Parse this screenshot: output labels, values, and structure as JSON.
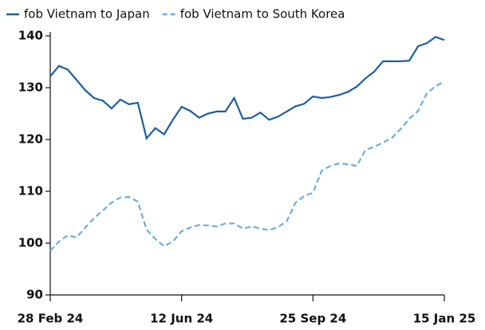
{
  "chart_data": {
    "type": "line",
    "categories": [
      "28 Feb 24",
      null,
      null,
      null,
      null,
      null,
      null,
      null,
      null,
      null,
      null,
      null,
      null,
      null,
      null,
      "12 Jun 24",
      null,
      null,
      null,
      null,
      null,
      null,
      null,
      null,
      null,
      null,
      null,
      null,
      null,
      null,
      "25 Sep 24",
      null,
      null,
      null,
      null,
      null,
      null,
      null,
      null,
      null,
      null,
      null,
      null,
      null,
      null,
      "15 Jan 25"
    ],
    "series": [
      {
        "name": "fob Vietnam to Japan",
        "color": "#1a5fa0",
        "dash": false,
        "values": [
          132.2,
          134.2,
          133.5,
          131.5,
          129.5,
          128,
          127.5,
          126,
          127.7,
          126.8,
          127.1,
          120.2,
          122.2,
          121,
          123.8,
          126.3,
          125.5,
          124.2,
          125,
          125.4,
          125.4,
          128,
          124,
          124.2,
          125.2,
          123.8,
          124.4,
          125.4,
          126.4,
          126.9,
          128.3,
          128,
          128.2,
          128.6,
          129.2,
          130.2,
          131.8,
          133.1,
          135.1,
          135.1,
          135.1,
          135.2,
          138,
          138.6,
          139.8,
          139.2
        ]
      },
      {
        "name": "fob Vietnam to South Korea",
        "color": "#6aaee0",
        "dash": true,
        "values": [
          98.5,
          100.3,
          101.5,
          101.1,
          103,
          104.8,
          106.3,
          107.8,
          108.8,
          108.9,
          108,
          102.6,
          100.8,
          99.4,
          100.3,
          102.3,
          103,
          103.5,
          103.4,
          103.2,
          103.8,
          103.8,
          102.8,
          103.2,
          102.8,
          102.5,
          103.1,
          104.2,
          107.8,
          109.1,
          109.7,
          114,
          114.9,
          115.4,
          115.2,
          114.9,
          118,
          118.6,
          119.4,
          120.3,
          122,
          124,
          125.5,
          128.9,
          130.3,
          131.2
        ]
      }
    ],
    "ylim": [
      90,
      140
    ],
    "yticks": [
      90,
      100,
      110,
      120,
      130,
      140
    ],
    "grid": false
  }
}
